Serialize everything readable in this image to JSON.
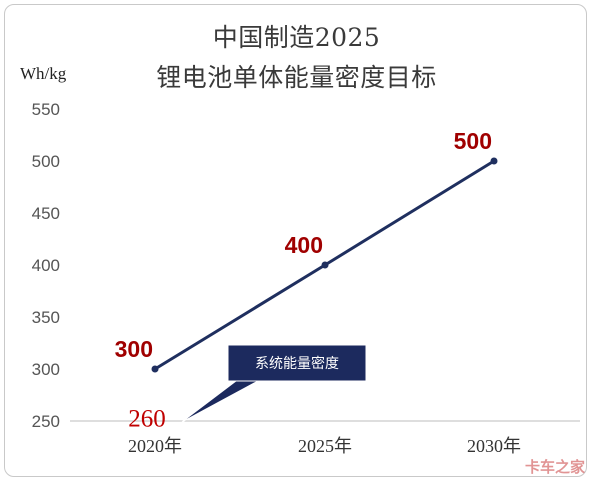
{
  "chart_data": {
    "type": "line",
    "title_line1": "中国制造2025",
    "title_line2": "锂电池单体能量密度目标",
    "unit": "Wh/kg",
    "categories": [
      "2020年",
      "2025年",
      "2030年"
    ],
    "series": [
      {
        "values": [
          300,
          400,
          500
        ],
        "color": "#1f2f5f"
      }
    ],
    "data_labels": [
      "300",
      "400",
      "500"
    ],
    "ylim": [
      250,
      550
    ],
    "yticks": [
      250,
      300,
      350,
      400,
      450,
      500,
      550
    ],
    "grid": false,
    "annotation": {
      "value": 260,
      "value_text": "260",
      "label": "系统能量密度",
      "category": "2020年",
      "box_color": "#1c2a5e"
    }
  },
  "watermark": "卡车之家"
}
